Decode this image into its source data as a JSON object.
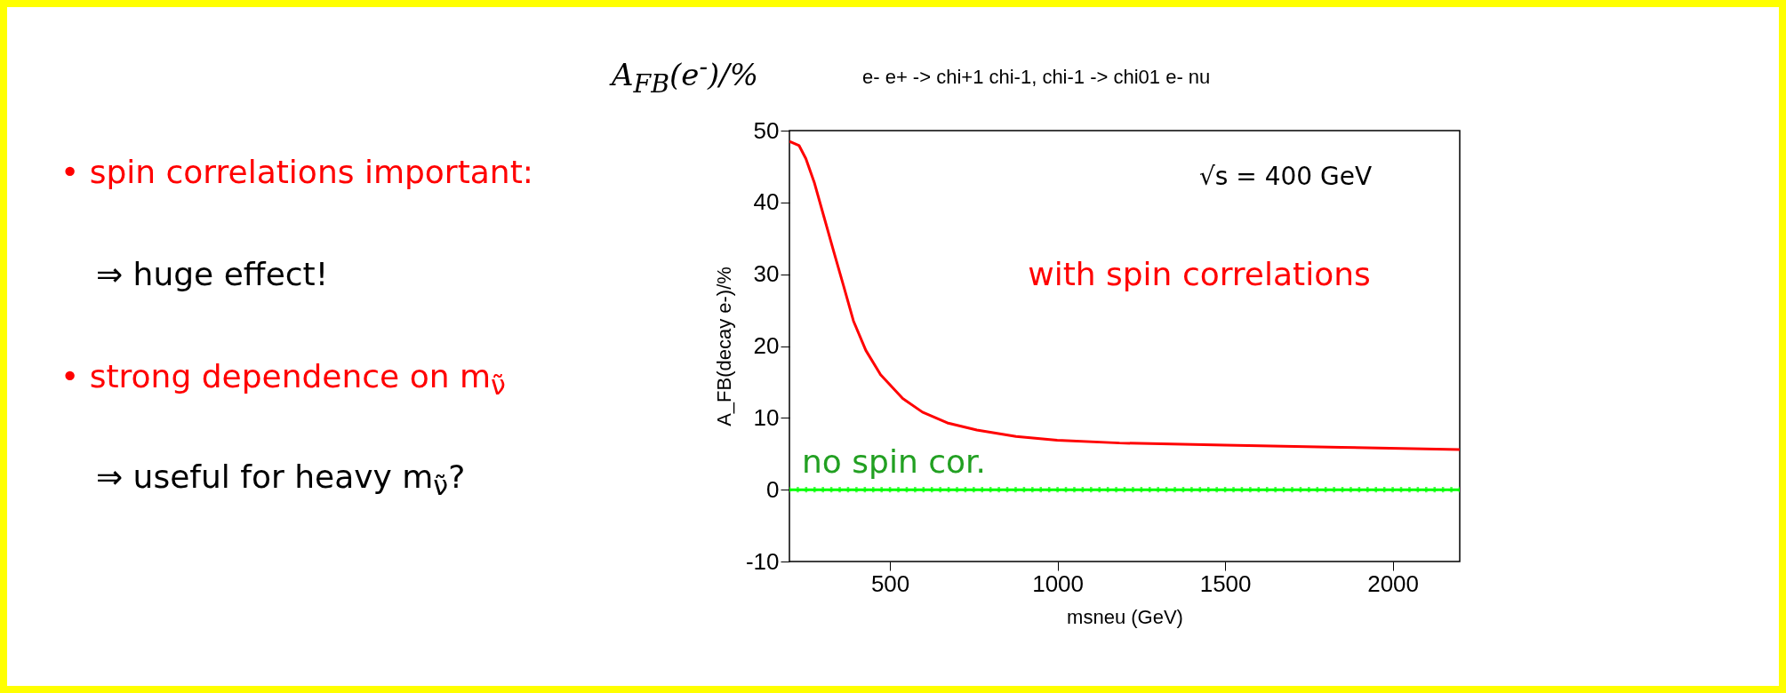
{
  "chart_data": {
    "type": "line",
    "title": "A$_{FB}$(e$^{-}$)/%",
    "subtitle": "e- e+ -> chi+1 chi-1, chi-1 -> chi01 e- nu",
    "xlabel": "msneu (GeV)",
    "ylabel": "A_FB(decay e-)/%",
    "xlim": [
      200,
      2200
    ],
    "xticks": [
      500,
      1000,
      1500,
      2000
    ],
    "ylim": [
      -10,
      50
    ],
    "yticks": [
      -10,
      0,
      10,
      20,
      30,
      40,
      50
    ],
    "series": [
      {
        "name": "with spin correlations",
        "color": "#ff0000",
        "x": [
          200,
          229,
          249,
          274,
          303,
          332,
          362,
          391,
          428,
          472,
          538,
          597,
          671,
          759,
          876,
          999,
          1185,
          1499,
          1847,
          2200
        ],
        "values": [
          48.5,
          47.9,
          46.1,
          42.8,
          38.0,
          33.2,
          28.3,
          23.5,
          19.4,
          16.0,
          12.7,
          10.8,
          9.3,
          8.3,
          7.4,
          6.9,
          6.5,
          6.2,
          5.9,
          5.6
        ]
      },
      {
        "name": "no spin cor.",
        "color": "#00ff00",
        "marker": "cross",
        "x": [
          200,
          225,
          250,
          275,
          300,
          325,
          350,
          375,
          400,
          425,
          450,
          475,
          500,
          525,
          550,
          575,
          600,
          625,
          650,
          675,
          700,
          725,
          750,
          775,
          800,
          825,
          850,
          875,
          900,
          925,
          950,
          975,
          1000,
          1025,
          1050,
          1075,
          1100,
          1125,
          1150,
          1175,
          1200,
          1225,
          1250,
          1275,
          1300,
          1325,
          1350,
          1375,
          1400,
          1425,
          1450,
          1475,
          1500,
          1525,
          1550,
          1575,
          1600,
          1625,
          1650,
          1675,
          1700,
          1725,
          1750,
          1775,
          1800,
          1825,
          1850,
          1875,
          1900,
          1925,
          1950,
          1975,
          2000,
          2025,
          2050,
          2075,
          2100,
          2125,
          2150,
          2175,
          2200
        ],
        "values": [
          0,
          0,
          0,
          0,
          0,
          0,
          0,
          0,
          0,
          0,
          0,
          0,
          0,
          0,
          0,
          0,
          0,
          0,
          0,
          0,
          0,
          0,
          0,
          0,
          0,
          0,
          0,
          0,
          0,
          0,
          0,
          0,
          0,
          0,
          0,
          0,
          0,
          0,
          0,
          0,
          0,
          0,
          0,
          0,
          0,
          0,
          0,
          0,
          0,
          0,
          0,
          0,
          0,
          0,
          0,
          0,
          0,
          0,
          0,
          0,
          0,
          0,
          0,
          0,
          0,
          0,
          0,
          0,
          0,
          0,
          0,
          0,
          0,
          0,
          0,
          0,
          0,
          0,
          0,
          0,
          0
        ]
      }
    ],
    "annotations": [
      "√s = 400 GeV",
      "• spin correlations important:",
      "⇒ huge effect!",
      "• strong dependence on m$_{ν̃}$",
      "⇒ useful for heavy m$_{ν̃}$?"
    ]
  }
}
